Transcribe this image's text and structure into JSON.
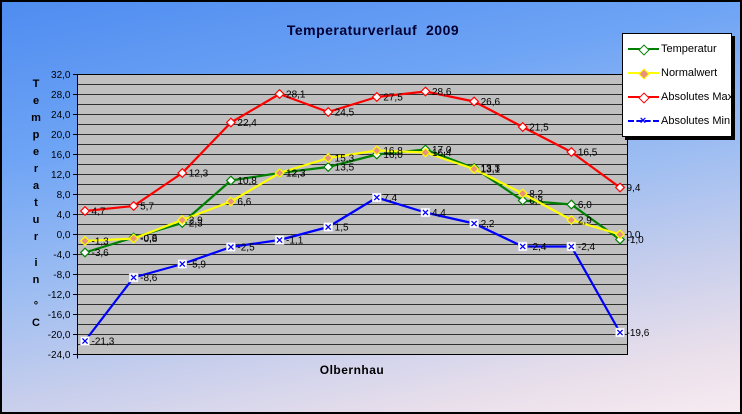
{
  "chart_data": {
    "type": "line",
    "title": "Temperaturverlauf  2009",
    "x_axis_title": "Olbernhau",
    "y_axis_title": "Temperatur in °C",
    "ylim": [
      -24,
      32
    ],
    "y_major_step": 4,
    "y_minor_step": 2,
    "y_tick_labels": [
      "32,0",
      "28,0",
      "24,0",
      "20,0",
      "16,0",
      "12,0",
      "8,0",
      "4,0",
      "0,0",
      "-4,0",
      "-8,0",
      "-12,0",
      "-16,0",
      "-20,0",
      "-24,0"
    ],
    "grid": true,
    "plot_bg": "#c0c0c0",
    "legend_position": "right",
    "x_point_count": 12,
    "x_tick_labels_visible": false,
    "data_labels_visible": true,
    "decimal_separator": ",",
    "series": [
      {
        "name": "Temperatur",
        "color": "#008000",
        "marker": "diamond",
        "marker_fill": "#ffffff",
        "values": [
          -3.6,
          -0.6,
          2.3,
          10.8,
          12.3,
          13.5,
          16.0,
          17.0,
          13.3,
          6.8,
          6.0,
          -1.0
        ]
      },
      {
        "name": "Normalwert",
        "color": "#ffff00",
        "marker": "diamond",
        "marker_fill": "#e8927c",
        "values": [
          -1.3,
          -0.8,
          2.9,
          6.6,
          12.3,
          15.3,
          16.8,
          16.4,
          13.1,
          8.2,
          2.9,
          0.0
        ]
      },
      {
        "name": "Absolutes Max",
        "color": "#ff0000",
        "marker": "diamond",
        "marker_fill": "#ffffff",
        "values": [
          4.7,
          5.7,
          12.3,
          22.4,
          28.1,
          24.5,
          27.5,
          28.6,
          26.6,
          21.5,
          16.5,
          9.4
        ]
      },
      {
        "name": "Absolutes Min",
        "color": "#0000ff",
        "marker": "x-square",
        "marker_fill": "#ffffff",
        "values": [
          -21.3,
          -8.6,
          -5.9,
          -2.5,
          -1.1,
          1.5,
          7.4,
          4.4,
          2.2,
          -2.4,
          -2.4,
          -19.6
        ]
      }
    ]
  },
  "colors": {
    "title": "#000033",
    "plot_background": "#c0c0c0",
    "gridline": "#000000",
    "background_top": "#4e8cf0",
    "background_bottom": "#f7ebf1",
    "legend_background": "#ffffff",
    "legend_shadow": "#000000"
  }
}
